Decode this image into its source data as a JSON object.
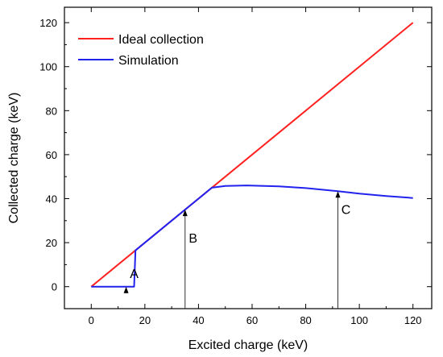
{
  "chart_data": {
    "type": "line",
    "title": "",
    "xlabel": "Excited charge (keV)",
    "ylabel": "Collected charge (keV)",
    "xlim": [
      -10,
      127
    ],
    "ylim": [
      -10,
      127
    ],
    "xticks": [
      0,
      20,
      40,
      60,
      80,
      100,
      120
    ],
    "yticks": [
      0,
      20,
      40,
      60,
      80,
      100,
      120
    ],
    "legend_position": "top-left",
    "grid": false,
    "series": [
      {
        "name": "Ideal collection",
        "color": "#ff2020",
        "x": [
          0,
          120
        ],
        "y": [
          0,
          120
        ]
      },
      {
        "name": "Simulation",
        "color": "#2222ee",
        "x": [
          0,
          16,
          16.5,
          30,
          45,
          50,
          58,
          70,
          80,
          92,
          100,
          110,
          120
        ],
        "y": [
          0,
          0,
          16.5,
          30,
          45,
          45.8,
          46,
          45.6,
          44.8,
          43.4,
          42.3,
          41.2,
          40.3
        ]
      }
    ],
    "annotations": [
      {
        "label": "A",
        "arrow_x": 13,
        "arrow_y_from": -3,
        "arrow_y_to": 0,
        "label_x": 16,
        "label_y": 4
      },
      {
        "label": "B",
        "arrow_x": 35,
        "arrow_y_from": -10,
        "arrow_y_to": 35,
        "label_x": 38,
        "label_y": 20
      },
      {
        "label": "C",
        "arrow_x": 92,
        "arrow_y_from": -10,
        "arrow_y_to": 43.4,
        "label_x": 95,
        "label_y": 33
      }
    ]
  }
}
